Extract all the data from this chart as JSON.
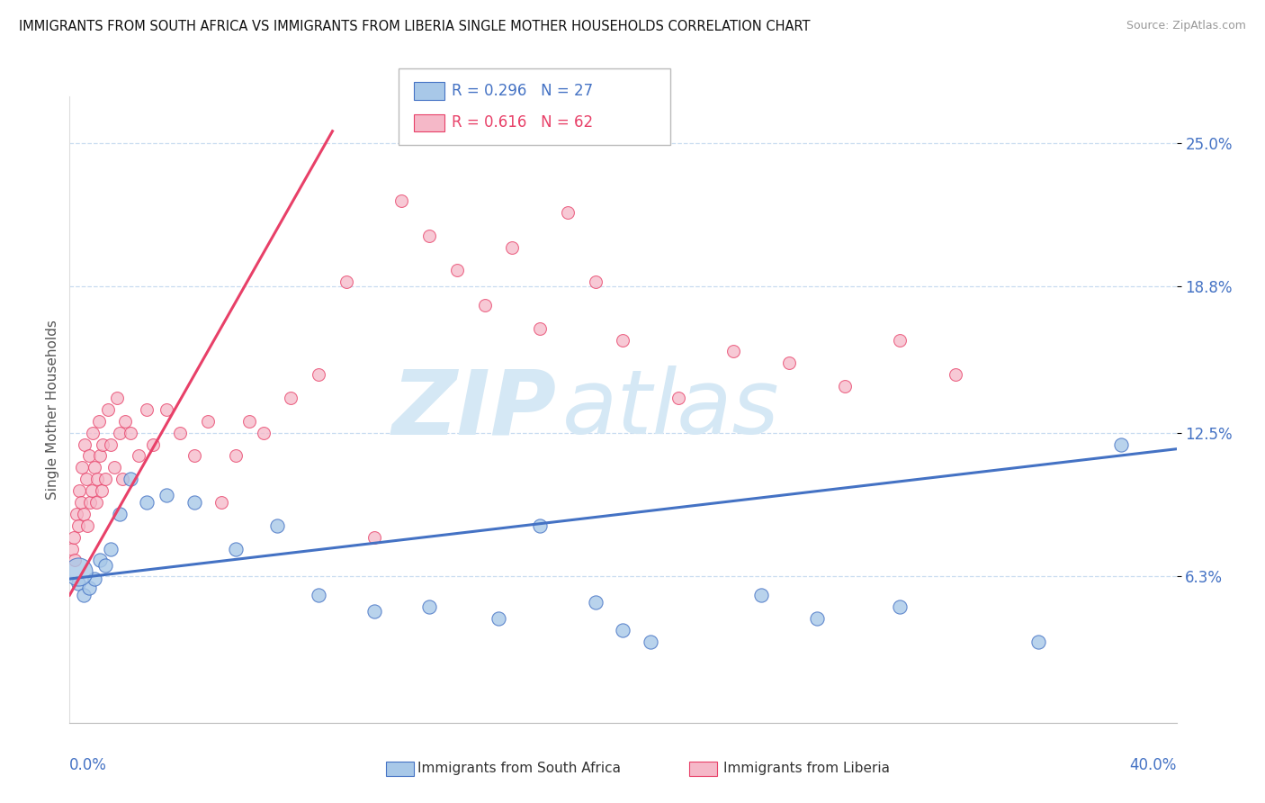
{
  "title": "IMMIGRANTS FROM SOUTH AFRICA VS IMMIGRANTS FROM LIBERIA SINGLE MOTHER HOUSEHOLDS CORRELATION CHART",
  "source": "Source: ZipAtlas.com",
  "ylabel": "Single Mother Households",
  "ytick_vals": [
    6.3,
    12.5,
    18.8,
    25.0
  ],
  "ytick_labels": [
    "6.3%",
    "12.5%",
    "18.8%",
    "25.0%"
  ],
  "xlim": [
    0.0,
    40.0
  ],
  "ylim": [
    0.0,
    27.0
  ],
  "color_sa": "#A8C8E8",
  "color_lib": "#F5B8C8",
  "line_color_sa": "#4472C4",
  "line_color_lib": "#E84068",
  "legend_r1": "R = 0.296",
  "legend_n1": "N = 27",
  "legend_r2": "R = 0.616",
  "legend_n2": "N = 62",
  "sa_x": [
    0.3,
    0.5,
    0.7,
    0.9,
    1.1,
    1.3,
    1.5,
    1.8,
    2.2,
    2.8,
    3.5,
    4.5,
    6.0,
    7.5,
    9.0,
    11.0,
    13.0,
    15.5,
    17.0,
    19.0,
    20.0,
    21.0,
    25.0,
    27.0,
    30.0,
    35.0,
    38.0
  ],
  "sa_y": [
    6.0,
    5.5,
    5.8,
    6.2,
    7.0,
    6.8,
    7.5,
    9.0,
    10.5,
    9.5,
    9.8,
    9.5,
    7.5,
    8.5,
    5.5,
    4.8,
    5.0,
    4.5,
    8.5,
    5.2,
    4.0,
    3.5,
    5.5,
    4.5,
    5.0,
    3.5,
    12.0
  ],
  "lib_x": [
    0.1,
    0.15,
    0.2,
    0.25,
    0.3,
    0.35,
    0.4,
    0.45,
    0.5,
    0.55,
    0.6,
    0.65,
    0.7,
    0.75,
    0.8,
    0.85,
    0.9,
    0.95,
    1.0,
    1.05,
    1.1,
    1.15,
    1.2,
    1.3,
    1.4,
    1.5,
    1.6,
    1.7,
    1.8,
    1.9,
    2.0,
    2.2,
    2.5,
    2.8,
    3.0,
    3.5,
    4.0,
    4.5,
    5.0,
    5.5,
    6.0,
    6.5,
    7.0,
    8.0,
    9.0,
    10.0,
    11.0,
    12.0,
    13.0,
    14.0,
    15.0,
    16.0,
    17.0,
    18.0,
    19.0,
    20.0,
    22.0,
    24.0,
    26.0,
    28.0,
    30.0,
    32.0
  ],
  "lib_y": [
    7.5,
    8.0,
    7.0,
    9.0,
    8.5,
    10.0,
    9.5,
    11.0,
    9.0,
    12.0,
    10.5,
    8.5,
    11.5,
    9.5,
    10.0,
    12.5,
    11.0,
    9.5,
    10.5,
    13.0,
    11.5,
    10.0,
    12.0,
    10.5,
    13.5,
    12.0,
    11.0,
    14.0,
    12.5,
    10.5,
    13.0,
    12.5,
    11.5,
    13.5,
    12.0,
    13.5,
    12.5,
    11.5,
    13.0,
    9.5,
    11.5,
    13.0,
    12.5,
    14.0,
    15.0,
    19.0,
    8.0,
    22.5,
    21.0,
    19.5,
    18.0,
    20.5,
    17.0,
    22.0,
    19.0,
    16.5,
    14.0,
    16.0,
    15.5,
    14.5,
    16.5,
    15.0
  ],
  "sa_line_x0": 0.0,
  "sa_line_x1": 40.0,
  "sa_line_y0": 6.2,
  "sa_line_y1": 11.8,
  "lib_line_x0": 0.0,
  "lib_line_x1": 9.5,
  "lib_line_y0": 5.5,
  "lib_line_y1": 25.5
}
